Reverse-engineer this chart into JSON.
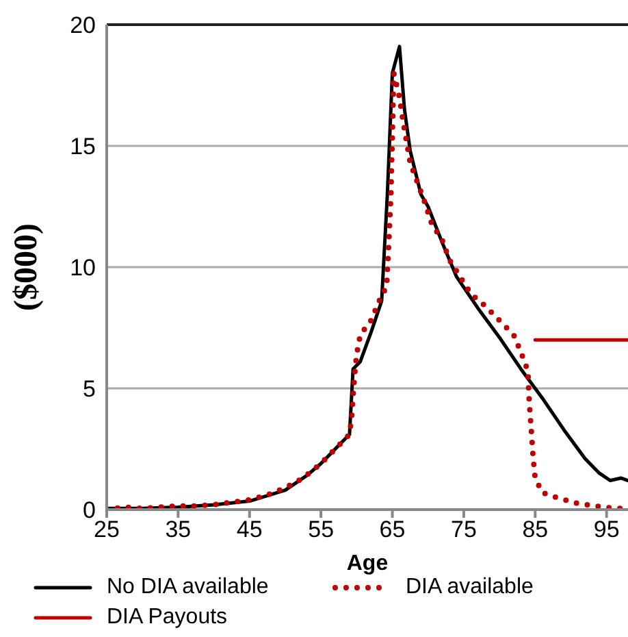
{
  "chart_data": {
    "type": "line",
    "xlabel": "Age",
    "ylabel": "($000)",
    "xlim": [
      25,
      98
    ],
    "xticks": [
      25,
      35,
      45,
      55,
      65,
      75,
      85,
      95
    ],
    "ylim": [
      0,
      20
    ],
    "yticks": [
      0,
      5,
      10,
      15,
      20
    ],
    "grid": "y",
    "legend": "bottom",
    "marker": "none",
    "series": [
      {
        "name": "No DIA available",
        "color": "#000000",
        "line_style": "solid",
        "x": [
          25,
          30,
          35,
          40,
          45,
          50,
          53,
          55,
          57,
          59,
          59.5,
          60.5,
          62,
          63.5,
          64.3,
          65,
          66,
          66.7,
          67.5,
          69,
          70,
          72,
          74,
          77,
          80,
          83,
          86,
          89,
          92,
          94,
          95.5,
          97,
          98
        ],
        "values": [
          0.05,
          0.05,
          0.1,
          0.2,
          0.35,
          0.8,
          1.4,
          1.9,
          2.5,
          3.1,
          5.8,
          6.1,
          7.3,
          8.6,
          13,
          18,
          19.1,
          16.5,
          14.8,
          13,
          12.5,
          11,
          9.6,
          8.3,
          7.1,
          5.8,
          4.6,
          3.3,
          2.1,
          1.5,
          1.2,
          1.3,
          1.2
        ]
      },
      {
        "name": "DIA available",
        "color": "#c00000",
        "line_style": "dotted",
        "x": [
          25,
          27.5,
          30,
          32.5,
          35,
          37.5,
          40,
          42.5,
          45,
          47.5,
          50,
          52.5,
          55,
          57,
          59,
          59.3,
          59.5,
          59.7,
          60,
          60.5,
          62,
          63.3,
          64.2,
          64.5,
          64.8,
          65,
          65.2,
          66,
          66.5,
          67.5,
          68.5,
          69.5,
          70.5,
          72,
          73,
          74.5,
          76,
          78,
          80,
          82,
          83,
          84,
          84.1,
          84.3,
          84.5,
          84.7,
          85,
          86,
          88,
          91,
          93.5,
          96,
          98
        ],
        "values": [
          0,
          0.1,
          0.05,
          0.1,
          0.15,
          0.15,
          0.2,
          0.3,
          0.4,
          0.6,
          0.9,
          1.3,
          1.9,
          2.5,
          3.1,
          3.8,
          4.7,
          5.5,
          6.4,
          7.2,
          7.8,
          8.7,
          9.2,
          11,
          13,
          15.4,
          18,
          17,
          16,
          14.3,
          13.5,
          12.7,
          11.8,
          11.1,
          10.3,
          9.6,
          8.9,
          8.4,
          7.8,
          7.2,
          6.5,
          5.7,
          4.8,
          3.9,
          3.1,
          2.2,
          1.3,
          0.7,
          0.5,
          0.25,
          0.15,
          0.05,
          0.05
        ]
      },
      {
        "name": "DIA Payouts",
        "color": "#c00000",
        "line_style": "solid",
        "x": [
          85,
          98
        ],
        "values": [
          7,
          7
        ]
      }
    ]
  }
}
